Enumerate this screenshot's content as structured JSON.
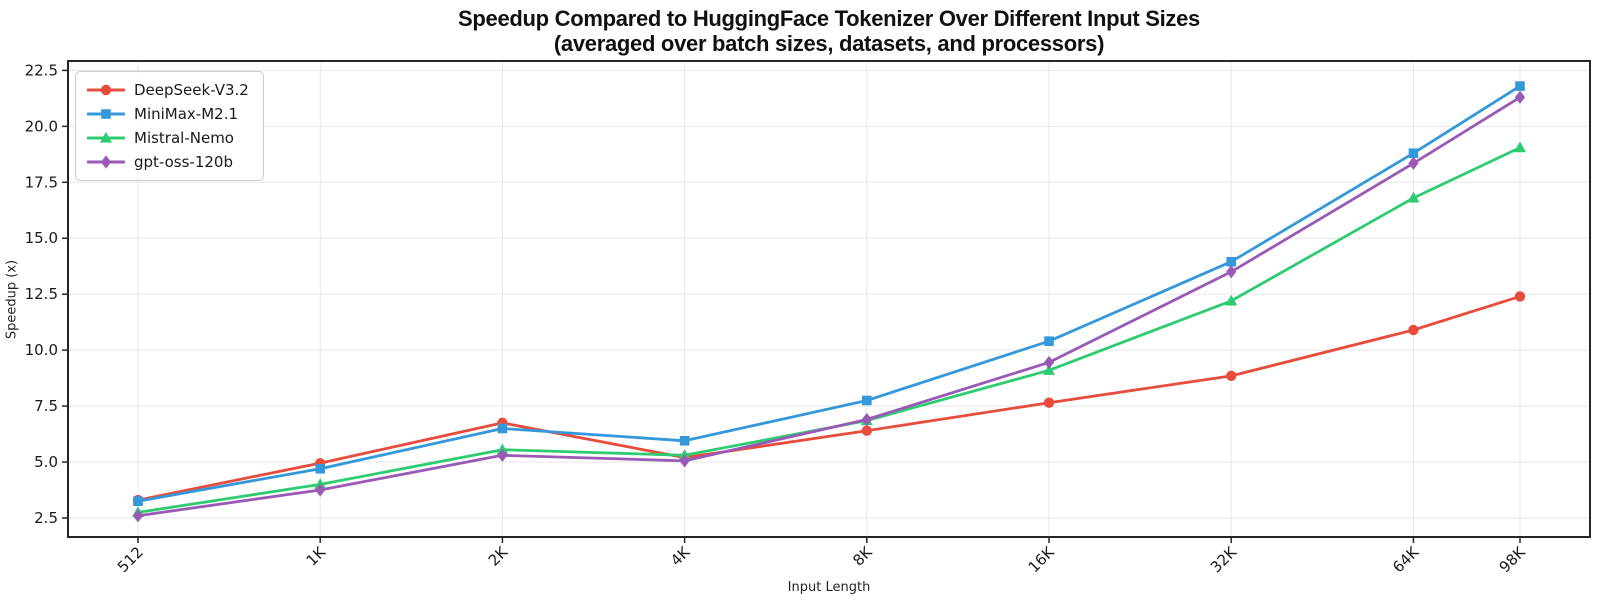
{
  "figure": {
    "title_line1": "Speedup Compared to HuggingFace Tokenizer Over Different Input Sizes",
    "title_line2": "(averaged over batch sizes, datasets, and processors)",
    "xlabel": "Input Length",
    "ylabel": "Speedup (x)"
  },
  "chart_data": {
    "type": "line",
    "title": "Speedup Compared to HuggingFace Tokenizer Over Different Input Sizes",
    "subtitle": "(averaged over batch sizes, datasets, and processors)",
    "xlabel": "Input Length",
    "ylabel": "Speedup (x)",
    "x_scale": "log2",
    "categories": [
      "512",
      "1K",
      "2K",
      "4K",
      "8K",
      "16K",
      "32K",
      "64K",
      "98K"
    ],
    "x_values": [
      512,
      1024,
      2048,
      4096,
      8192,
      16384,
      32768,
      65536,
      98304
    ],
    "ytick_labels": [
      "2.5",
      "5.0",
      "7.5",
      "10.0",
      "12.5",
      "15.0",
      "17.5",
      "20.0",
      "22.5"
    ],
    "yticks": [
      2.5,
      5.0,
      7.5,
      10.0,
      12.5,
      15.0,
      17.5,
      20.0,
      22.5
    ],
    "ylim": [
      1.65,
      22.92
    ],
    "grid": true,
    "legend_position": "upper-left",
    "series": [
      {
        "name": "DeepSeek-V3.2",
        "color": "#e74c3c",
        "marker": "circle",
        "values": [
          3.3,
          4.95,
          6.75,
          5.2,
          6.4,
          7.65,
          8.85,
          10.9,
          12.4
        ]
      },
      {
        "name": "MiniMax-M2.1",
        "color": "#3498db",
        "marker": "square",
        "values": [
          3.25,
          4.7,
          6.5,
          5.95,
          7.75,
          10.4,
          13.95,
          18.8,
          21.8
        ]
      },
      {
        "name": "Mistral-Nemo",
        "color": "#2ecc71",
        "marker": "triangle",
        "values": [
          2.75,
          4.0,
          5.55,
          5.3,
          6.85,
          9.1,
          12.2,
          16.8,
          19.05
        ]
      },
      {
        "name": "gpt-oss-120b",
        "color": "#9b59b6",
        "marker": "diamond",
        "values": [
          2.6,
          3.75,
          5.3,
          5.05,
          6.9,
          9.45,
          13.5,
          18.35,
          21.3
        ]
      }
    ]
  }
}
